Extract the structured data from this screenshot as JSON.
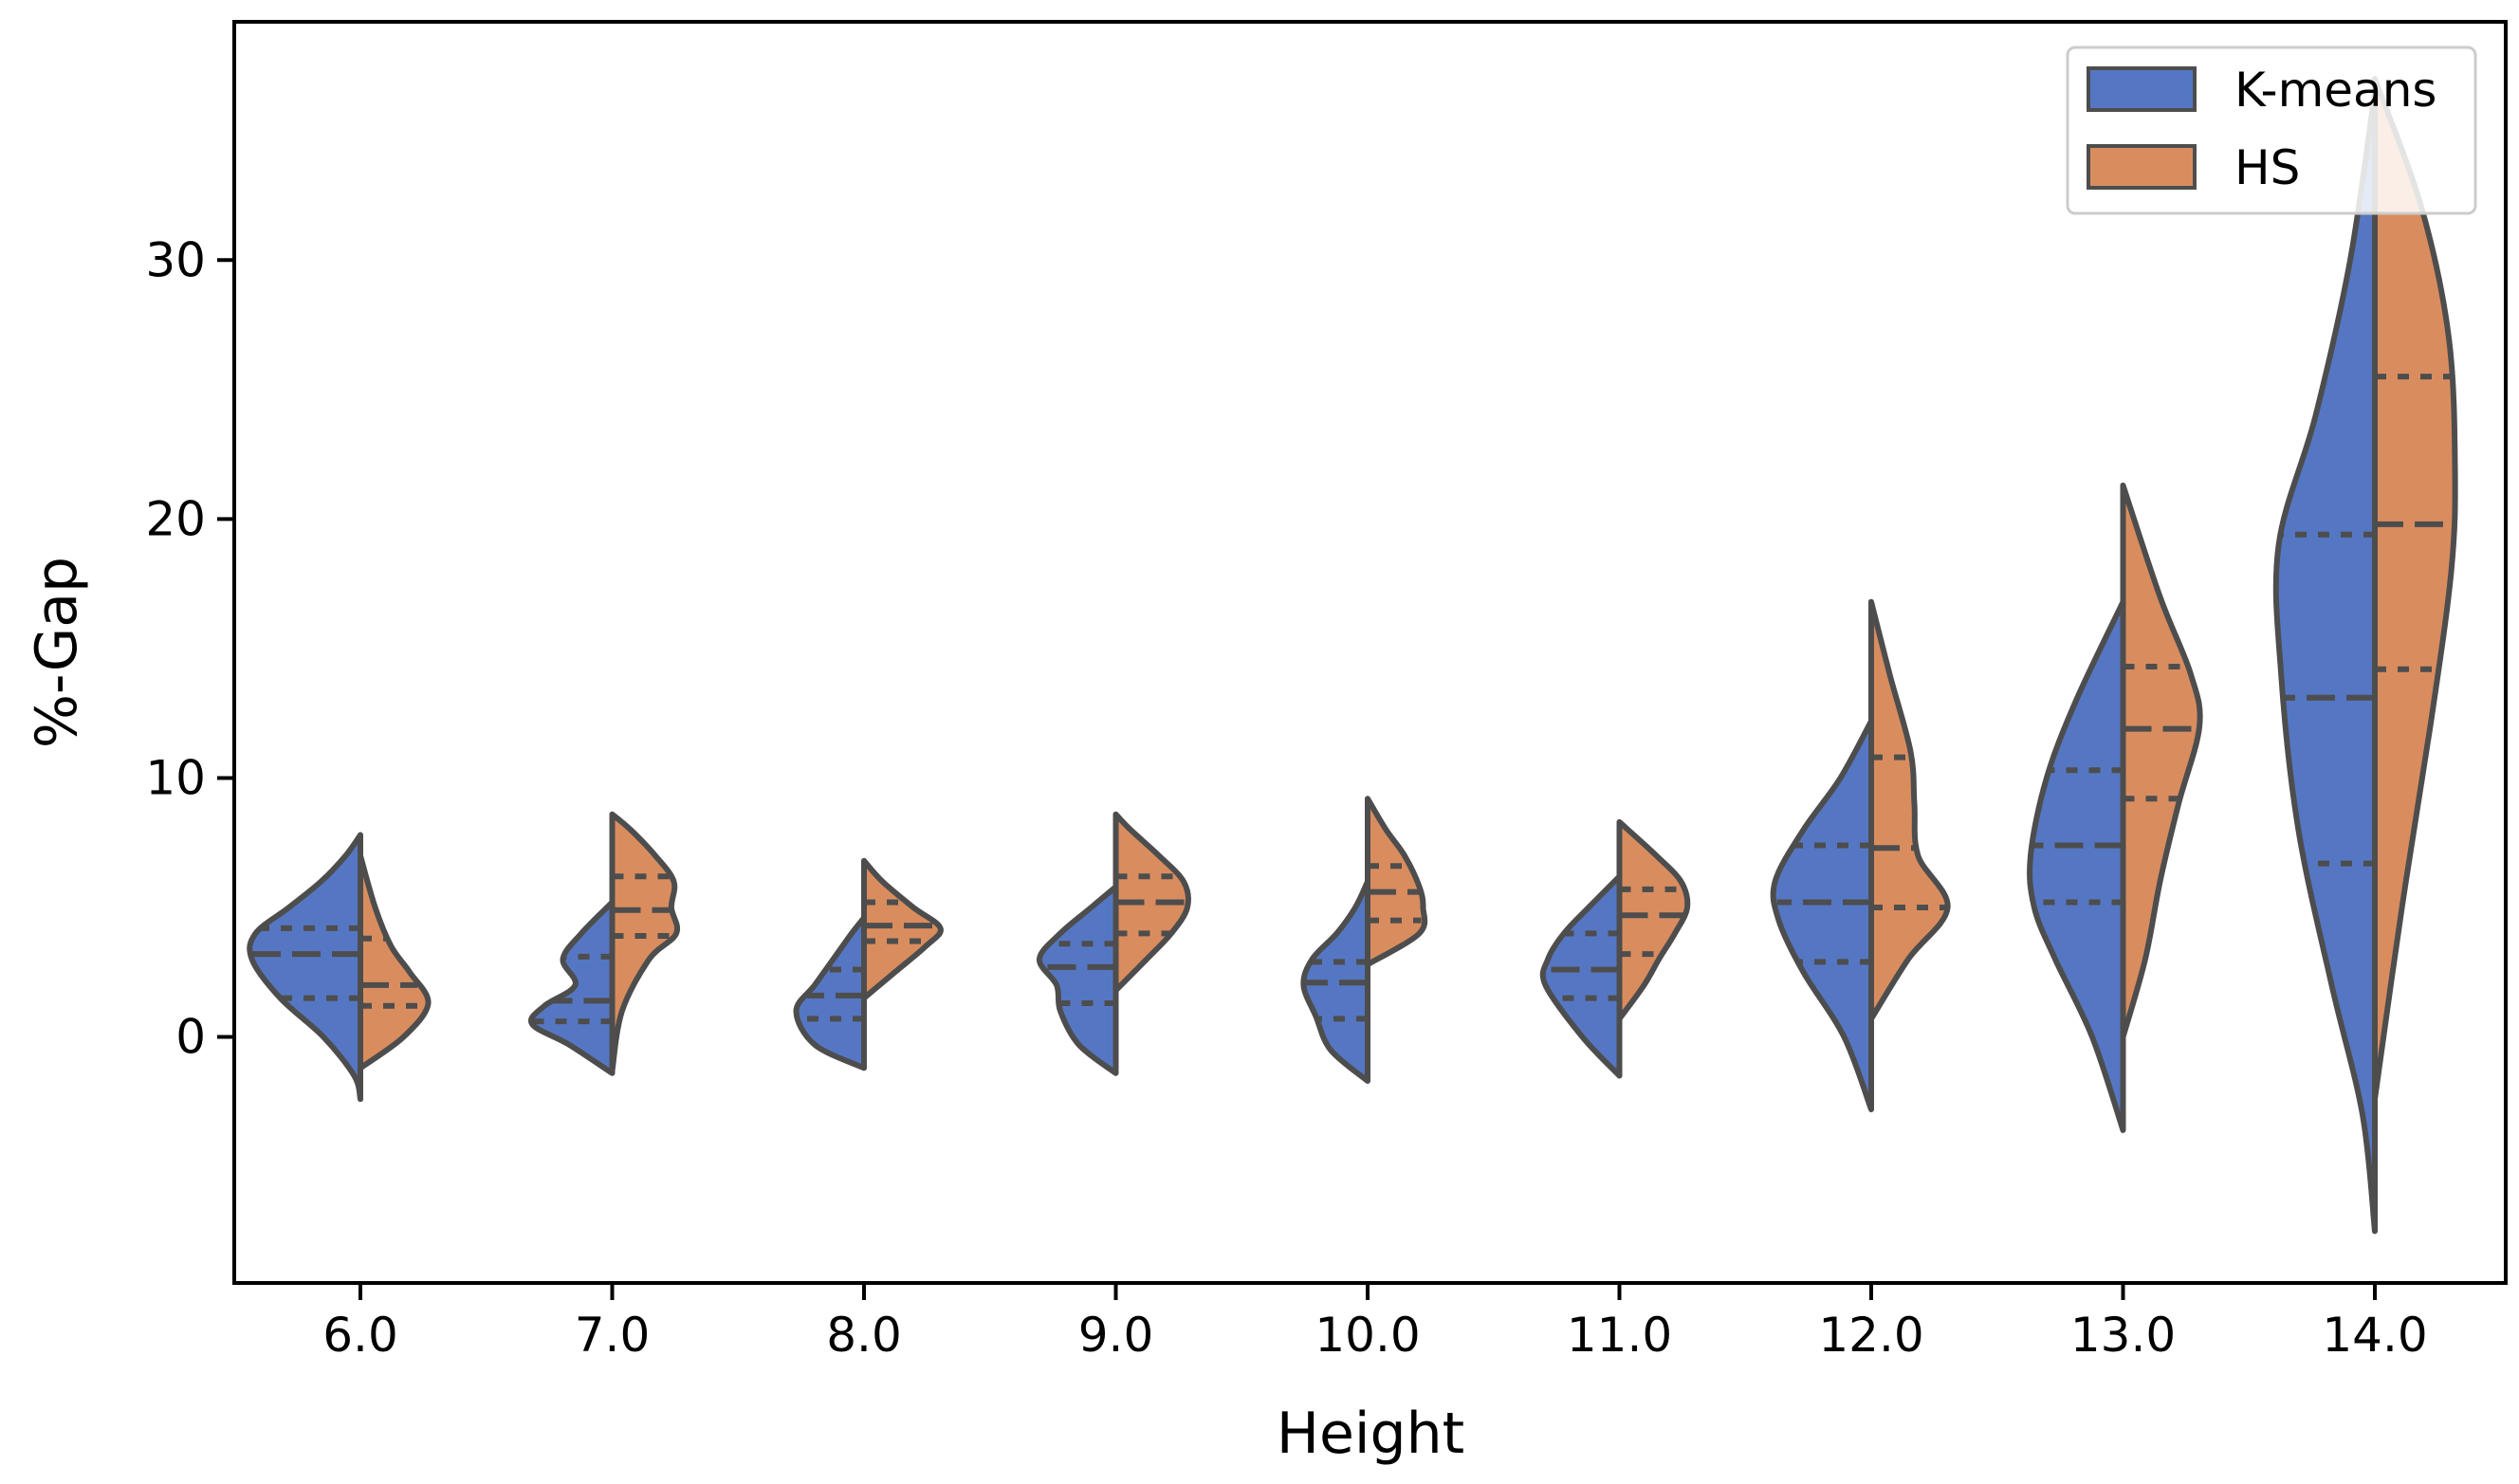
{
  "chart_data": {
    "type": "violin",
    "split": true,
    "title": "",
    "xlabel": "Height",
    "ylabel": "%-Gap",
    "categories": [
      "6.0",
      "7.0",
      "8.0",
      "9.0",
      "10.0",
      "11.0",
      "12.0",
      "13.0",
      "14.0"
    ],
    "ylim": [
      -9.5,
      39.2
    ],
    "yticks": [
      0,
      10,
      20,
      30
    ],
    "ytick_labels": [
      "0",
      "10",
      "20",
      "30"
    ],
    "legend": {
      "position": "top-right",
      "entries": [
        "K-means",
        "HS"
      ]
    },
    "colors": {
      "K-means": "#5577c3",
      "HS": "#d98d5f",
      "edge": "#4d4d4d"
    },
    "series": [
      {
        "name": "K-means",
        "side": "left",
        "violins": [
          {
            "category": "6.0",
            "min": -2.4,
            "max": 7.8,
            "q1": 1.5,
            "median": 3.2,
            "q3": 4.2,
            "density": [
              [
                -2.4,
                0
              ],
              [
                -1.5,
                0.05
              ],
              [
                0,
                0.3
              ],
              [
                1.5,
                0.65
              ],
              [
                3,
                0.88
              ],
              [
                4,
                0.85
              ],
              [
                5,
                0.58
              ],
              [
                6,
                0.32
              ],
              [
                7,
                0.12
              ],
              [
                7.8,
                0
              ]
            ]
          },
          {
            "category": "7.0",
            "min": -1.4,
            "max": 5.2,
            "q1": 0.6,
            "median": 1.4,
            "q3": 3.1,
            "density": [
              [
                -1.4,
                0
              ],
              [
                -0.3,
                0.35
              ],
              [
                0.5,
                0.65
              ],
              [
                1.2,
                0.55
              ],
              [
                2,
                0.3
              ],
              [
                3,
                0.4
              ],
              [
                4,
                0.25
              ],
              [
                5.2,
                0
              ]
            ]
          },
          {
            "category": "8.0",
            "min": -1.2,
            "max": 4.6,
            "q1": 0.7,
            "median": 1.6,
            "q3": 2.6,
            "density": [
              [
                -1.2,
                0
              ],
              [
                -0.3,
                0.4
              ],
              [
                1,
                0.55
              ],
              [
                2,
                0.4
              ],
              [
                3,
                0.25
              ],
              [
                4,
                0.1
              ],
              [
                4.6,
                0
              ]
            ]
          },
          {
            "category": "9.0",
            "min": -1.4,
            "max": 5.8,
            "q1": 1.3,
            "median": 2.7,
            "q3": 3.6,
            "density": [
              [
                -1.4,
                0
              ],
              [
                -0.3,
                0.3
              ],
              [
                1,
                0.45
              ],
              [
                2,
                0.48
              ],
              [
                3,
                0.62
              ],
              [
                4,
                0.45
              ],
              [
                5,
                0.2
              ],
              [
                5.8,
                0
              ]
            ]
          },
          {
            "category": "10.0",
            "min": -1.7,
            "max": 6.0,
            "q1": 0.7,
            "median": 2.1,
            "q3": 2.9,
            "density": [
              [
                -1.7,
                0
              ],
              [
                -0.5,
                0.3
              ],
              [
                0.8,
                0.42
              ],
              [
                2,
                0.52
              ],
              [
                3,
                0.45
              ],
              [
                4,
                0.25
              ],
              [
                5,
                0.1
              ],
              [
                6,
                0
              ]
            ]
          },
          {
            "category": "11.0",
            "min": -1.5,
            "max": 6.2,
            "q1": 1.5,
            "median": 2.6,
            "q3": 4.0,
            "density": [
              [
                -1.5,
                0
              ],
              [
                0,
                0.3
              ],
              [
                2,
                0.6
              ],
              [
                3,
                0.58
              ],
              [
                4,
                0.45
              ],
              [
                5,
                0.25
              ],
              [
                6.2,
                0
              ]
            ]
          },
          {
            "category": "12.0",
            "min": -2.8,
            "max": 12.2,
            "q1": 2.9,
            "median": 5.2,
            "q3": 7.4,
            "density": [
              [
                -2.8,
                0
              ],
              [
                0,
                0.22
              ],
              [
                2.5,
                0.55
              ],
              [
                4.5,
                0.75
              ],
              [
                6,
                0.78
              ],
              [
                8,
                0.55
              ],
              [
                10,
                0.25
              ],
              [
                12.2,
                0
              ]
            ]
          },
          {
            "category": "13.0",
            "min": -3.6,
            "max": 16.8,
            "q1": 5.2,
            "median": 7.4,
            "q3": 10.3,
            "density": [
              [
                -3.6,
                0
              ],
              [
                0,
                0.25
              ],
              [
                3,
                0.55
              ],
              [
                5,
                0.72
              ],
              [
                7,
                0.75
              ],
              [
                10,
                0.62
              ],
              [
                13,
                0.38
              ],
              [
                16.8,
                0
              ]
            ]
          },
          {
            "category": "14.0",
            "min": -7.5,
            "max": 36.5,
            "q1": 6.7,
            "median": 13.1,
            "q3": 19.4,
            "density": [
              [
                -7.5,
                0
              ],
              [
                -3,
                0.1
              ],
              [
                2,
                0.35
              ],
              [
                8,
                0.62
              ],
              [
                14,
                0.76
              ],
              [
                19,
                0.78
              ],
              [
                24,
                0.48
              ],
              [
                30,
                0.2
              ],
              [
                36.5,
                0
              ]
            ]
          }
        ]
      },
      {
        "name": "HS",
        "side": "right",
        "violins": [
          {
            "category": "6.0",
            "min": -1.2,
            "max": 7.0,
            "q1": 1.2,
            "median": 2.0,
            "q3": 3.8,
            "density": [
              [
                -1.2,
                0
              ],
              [
                0,
                0.35
              ],
              [
                1.3,
                0.55
              ],
              [
                2.5,
                0.4
              ],
              [
                3.5,
                0.25
              ],
              [
                5,
                0.12
              ],
              [
                7,
                0
              ]
            ]
          },
          {
            "category": "7.0",
            "min": -1.3,
            "max": 8.6,
            "q1": 3.9,
            "median": 4.9,
            "q3": 6.2,
            "density": [
              [
                -1.3,
                0
              ],
              [
                1,
                0.08
              ],
              [
                3,
                0.3
              ],
              [
                4,
                0.52
              ],
              [
                5,
                0.48
              ],
              [
                6,
                0.5
              ],
              [
                7,
                0.35
              ],
              [
                8,
                0.15
              ],
              [
                8.6,
                0
              ]
            ]
          },
          {
            "category": "8.0",
            "min": 1.5,
            "max": 6.8,
            "q1": 3.7,
            "median": 4.3,
            "q3": 5.2,
            "density": [
              [
                1.5,
                0
              ],
              [
                2.5,
                0.25
              ],
              [
                3.5,
                0.5
              ],
              [
                4.2,
                0.62
              ],
              [
                5,
                0.4
              ],
              [
                6,
                0.15
              ],
              [
                6.8,
                0
              ]
            ]
          },
          {
            "category": "9.0",
            "min": 1.8,
            "max": 8.6,
            "q1": 4.0,
            "median": 5.2,
            "q3": 6.2,
            "density": [
              [
                1.8,
                0
              ],
              [
                3,
                0.25
              ],
              [
                4,
                0.45
              ],
              [
                5,
                0.58
              ],
              [
                6,
                0.55
              ],
              [
                7,
                0.35
              ],
              [
                8,
                0.12
              ],
              [
                8.6,
                0
              ]
            ]
          },
          {
            "category": "10.0",
            "min": 2.8,
            "max": 9.2,
            "q1": 4.5,
            "median": 5.6,
            "q3": 6.6,
            "density": [
              [
                2.8,
                0
              ],
              [
                4,
                0.42
              ],
              [
                5,
                0.45
              ],
              [
                5.8,
                0.42
              ],
              [
                7,
                0.3
              ],
              [
                8,
                0.15
              ],
              [
                9.2,
                0
              ]
            ]
          },
          {
            "category": "11.0",
            "min": 0.7,
            "max": 8.3,
            "q1": 3.2,
            "median": 4.7,
            "q3": 5.7,
            "density": [
              [
                0.7,
                0
              ],
              [
                2,
                0.2
              ],
              [
                3,
                0.32
              ],
              [
                4,
                0.45
              ],
              [
                5,
                0.55
              ],
              [
                6,
                0.5
              ],
              [
                7,
                0.3
              ],
              [
                8.3,
                0
              ]
            ]
          },
          {
            "category": "12.0",
            "min": 0.7,
            "max": 16.8,
            "q1": 5.0,
            "median": 7.3,
            "q3": 10.8,
            "density": [
              [
                0.7,
                0
              ],
              [
                3,
                0.3
              ],
              [
                5,
                0.62
              ],
              [
                7,
                0.38
              ],
              [
                9,
                0.35
              ],
              [
                11,
                0.32
              ],
              [
                14,
                0.15
              ],
              [
                16.8,
                0
              ]
            ]
          },
          {
            "category": "13.0",
            "min": 0.0,
            "max": 21.3,
            "q1": 9.2,
            "median": 11.9,
            "q3": 14.3,
            "density": [
              [
                0,
                0
              ],
              [
                3,
                0.18
              ],
              [
                6,
                0.3
              ],
              [
                9,
                0.45
              ],
              [
                12,
                0.62
              ],
              [
                14,
                0.55
              ],
              [
                17,
                0.3
              ],
              [
                21.3,
                0
              ]
            ]
          },
          {
            "category": "14.0",
            "min": -2.4,
            "max": 37.0,
            "q1": 14.2,
            "median": 19.8,
            "q3": 25.5,
            "density": [
              [
                -2.4,
                0
              ],
              [
                5,
                0.22
              ],
              [
                12,
                0.45
              ],
              [
                18,
                0.62
              ],
              [
                22,
                0.65
              ],
              [
                27,
                0.6
              ],
              [
                32,
                0.38
              ],
              [
                37,
                0
              ]
            ]
          }
        ]
      }
    ]
  }
}
